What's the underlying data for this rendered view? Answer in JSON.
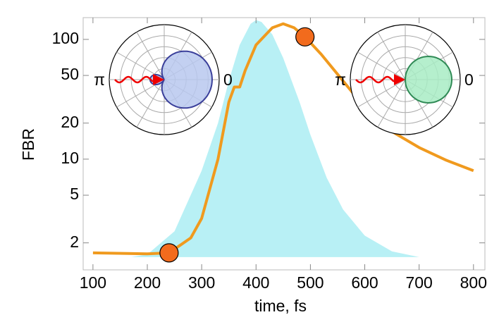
{
  "chart_data": {
    "type": "line",
    "xlabel": "time, fs",
    "ylabel": "FBR",
    "xlim": [
      82,
      821
    ],
    "ylim": [
      1.19,
      152
    ],
    "yscale": "log",
    "xticks": [
      100,
      200,
      300,
      400,
      500,
      600,
      700,
      800
    ],
    "yticks": [
      2,
      5,
      10,
      20,
      50,
      100
    ],
    "series": [
      {
        "color": "#b8f0f5",
        "fill": true,
        "x": [
          170,
          200,
          250,
          300,
          330,
          350,
          370,
          390,
          400,
          410,
          430,
          450,
          480,
          500,
          530,
          560,
          600,
          650,
          700
        ],
        "values": [
          1.52,
          1.6,
          2.5,
          8,
          20,
          45,
          90,
          135,
          145,
          140,
          110,
          70,
          30,
          16,
          7,
          3.8,
          2.3,
          1.7,
          1.52
        ]
      },
      {
        "color": "#f09a1e",
        "fill": false,
        "x": [
          100,
          200,
          240,
          280,
          300,
          330,
          350,
          360,
          370,
          380,
          400,
          430,
          450,
          470,
          490,
          520,
          560,
          600,
          650,
          700,
          750,
          800
        ],
        "values": [
          1.65,
          1.62,
          1.65,
          2.2,
          3.2,
          10,
          30,
          40,
          40,
          55,
          90,
          125,
          135,
          125,
          105,
          75,
          45,
          27,
          17,
          12.5,
          9.8,
          8
        ]
      }
    ],
    "markers": {
      "color": "#f26b1d",
      "x": [
        240,
        490
      ],
      "values": [
        1.65,
        105
      ]
    },
    "insets": [
      {
        "fill": "#b9c8ee",
        "stroke": "#3a3f9a",
        "labels": [
          "π",
          "0"
        ],
        "label_colors": [
          "#000000",
          "#2a7f8a"
        ]
      },
      {
        "fill": "#a8ecc4",
        "stroke": "#2f8a55",
        "labels": [
          "π",
          "0"
        ],
        "label_colors": [
          "#000000",
          "#000000"
        ]
      }
    ]
  }
}
